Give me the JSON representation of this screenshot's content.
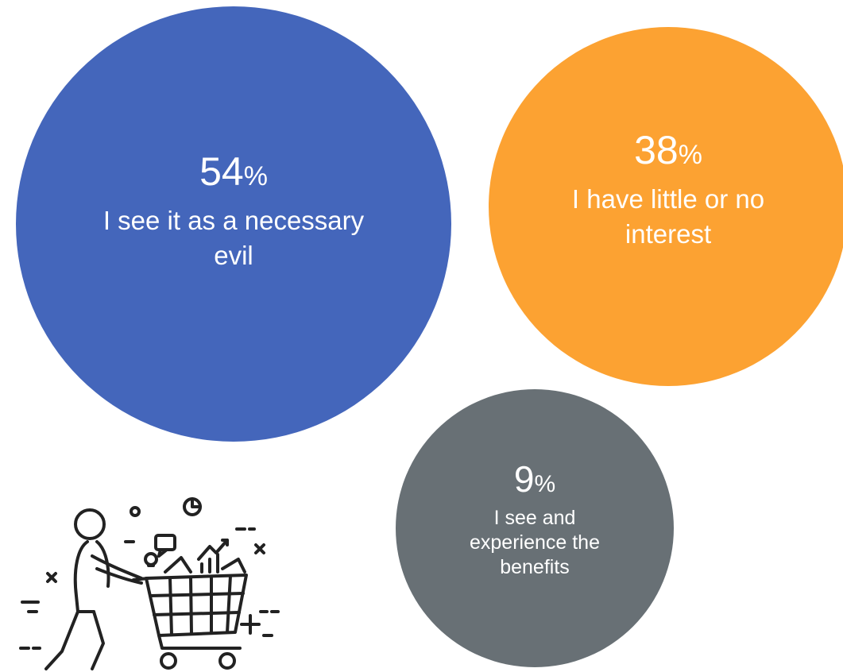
{
  "chart_data": {
    "type": "bubble",
    "title": "",
    "unit_symbol": "%",
    "items": [
      {
        "value": 54,
        "label": "I see it as a necessary evil",
        "color": "#4466bb"
      },
      {
        "value": 38,
        "label": "I have little or no interest",
        "color": "#fca232"
      },
      {
        "value": 9,
        "label": "I see and experience the benefits",
        "color": "#687075"
      }
    ]
  },
  "illustration": {
    "icon": "shopping-cart-person-icon"
  }
}
